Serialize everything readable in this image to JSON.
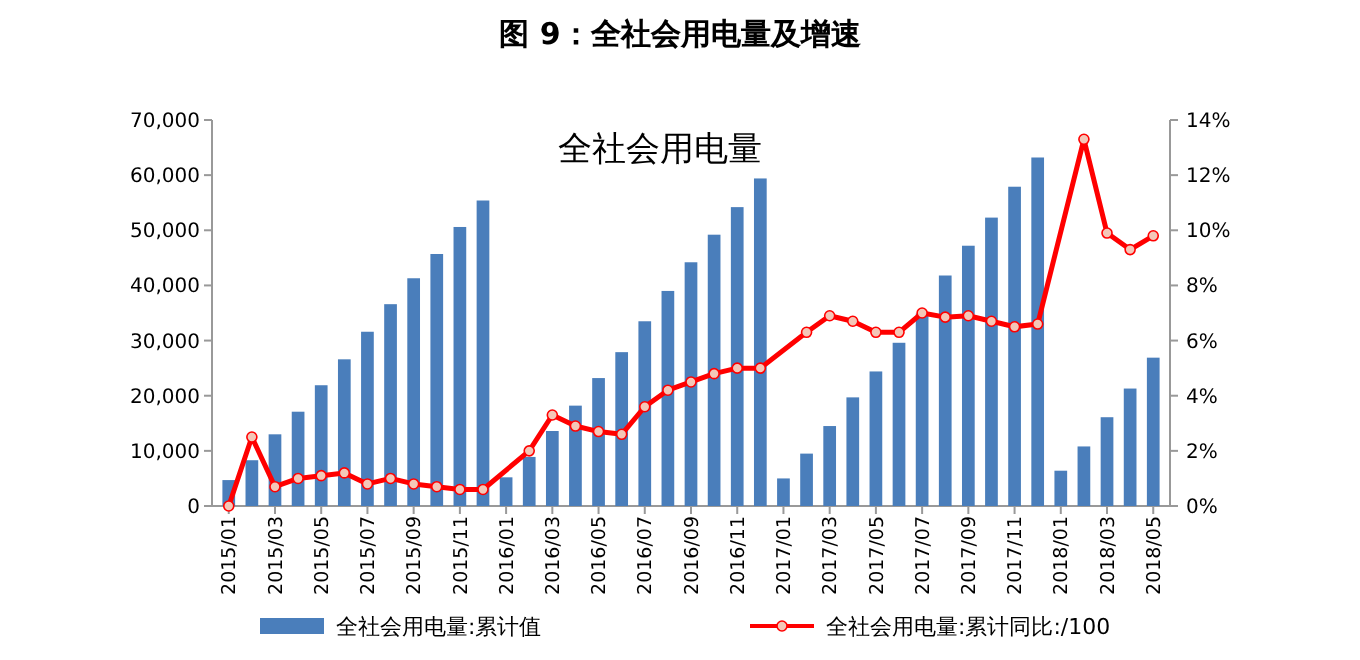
{
  "chart_data": {
    "type": "bar",
    "title": "图 9：全社会用电量及增速",
    "subtitle": "全社会用电量",
    "categories": [
      "2015/01",
      null,
      "2015/03",
      null,
      "2015/05",
      null,
      "2015/07",
      null,
      "2015/09",
      null,
      "2015/11",
      null,
      "2016/01",
      null,
      "2016/03",
      null,
      "2016/05",
      null,
      "2016/07",
      null,
      "2016/09",
      null,
      "2016/11",
      null,
      "2017/01",
      null,
      "2017/03",
      null,
      "2017/05",
      null,
      "2017/07",
      null,
      "2017/09",
      null,
      "2017/11",
      null,
      "2018/01",
      null,
      "2018/03",
      null,
      "2018/05"
    ],
    "series": [
      {
        "name": "全社会用电量:累计值",
        "color": "#4a7ebb",
        "values": [
          4700,
          8300,
          13000,
          17100,
          21900,
          26600,
          31600,
          36600,
          41300,
          45700,
          50600,
          55400,
          5200,
          8900,
          13600,
          18200,
          23200,
          27900,
          33500,
          39000,
          44200,
          49200,
          54200,
          59400,
          5000,
          9500,
          14500,
          19700,
          24400,
          29600,
          34900,
          41800,
          47200,
          52300,
          57900,
          63200,
          6400,
          10800,
          16100,
          21300,
          26900
        ]
      },
      {
        "name": "全社会用电量:累计同比:/100",
        "type": "line",
        "axis": "y2",
        "color": "#ff0000",
        "marker": "circle",
        "values": [
          0,
          2.5,
          0.7,
          1.0,
          1.1,
          1.2,
          0.8,
          1.0,
          0.8,
          0.7,
          0.6,
          0.6,
          null,
          2.0,
          3.3,
          2.9,
          2.7,
          2.6,
          3.6,
          4.2,
          4.5,
          4.8,
          5.0,
          5.0,
          null,
          6.3,
          6.9,
          6.7,
          6.3,
          6.3,
          7.0,
          6.85,
          6.9,
          6.7,
          6.5,
          6.6,
          null,
          13.3,
          9.9,
          9.3,
          9.8
        ]
      }
    ],
    "ylim": [
      0,
      70000
    ],
    "yticks": [
      {
        "value": 0,
        "label": "0"
      },
      {
        "value": 10000,
        "label": "10,000"
      },
      {
        "value": 20000,
        "label": "20,000"
      },
      {
        "value": 30000,
        "label": "30,000"
      },
      {
        "value": 40000,
        "label": "40,000"
      },
      {
        "value": 50000,
        "label": "50,000"
      },
      {
        "value": 60000,
        "label": "60,000"
      },
      {
        "value": 70000,
        "label": "70,000"
      }
    ],
    "y2lim": [
      0,
      14
    ],
    "y2ticks": [
      {
        "value": 0,
        "label": "0%"
      },
      {
        "value": 2,
        "label": "2%"
      },
      {
        "value": 4,
        "label": "4%"
      },
      {
        "value": 6,
        "label": "6%"
      },
      {
        "value": 8,
        "label": "8%"
      },
      {
        "value": 10,
        "label": "10%"
      },
      {
        "value": 12,
        "label": "12%"
      },
      {
        "value": 14,
        "label": "14%"
      }
    ],
    "grid": false,
    "legend": "bottom"
  }
}
